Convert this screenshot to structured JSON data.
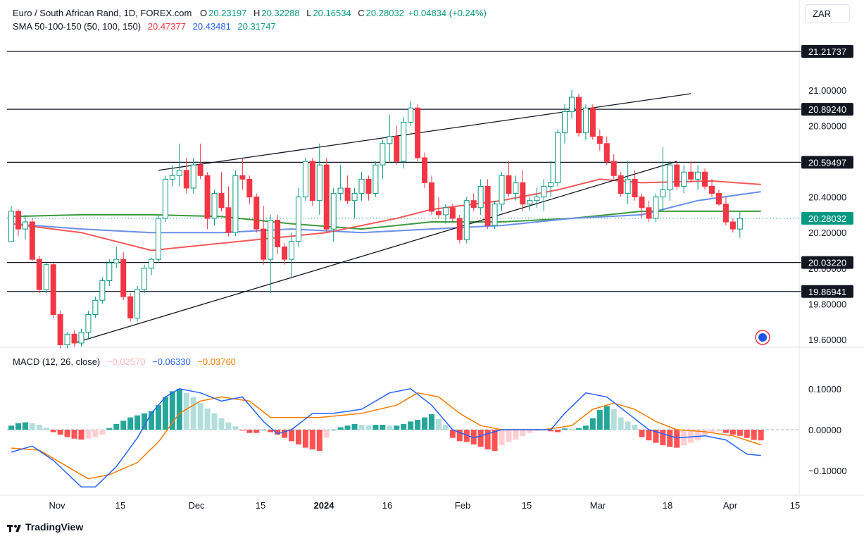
{
  "header": {
    "symbol": "Euro / South African Rand, 1D, FOREX.com",
    "o_label": "O",
    "o_value": "20.23197",
    "h_label": "H",
    "h_value": "20.32288",
    "l_label": "L",
    "l_value": "20.16534",
    "c_label": "C",
    "c_value": "20.28032",
    "change": "+0.04834 (+0.24%)",
    "sma_label": "SMA 50-100-150 (50, 100, 150)",
    "sma50_value": "20.47377",
    "sma100_value": "20.43481",
    "sma150_value": "20.31747",
    "macd_label": "MACD (12, 26, close)",
    "macd_hist_value": "−0.02570",
    "macd_value": "−0.06330",
    "macd_signal_value": "−0.03760"
  },
  "currency_button": "ZAR",
  "brand": "TradingView",
  "colors": {
    "up": "#089981",
    "down": "#f23645",
    "sma50": "#f05a5a",
    "sma100": "#6b8fe8",
    "sma150": "#3d9a3d",
    "macd": "#2962ff",
    "signal": "#f57c00",
    "last_price": "#089981"
  },
  "chart_data": [
    {
      "type": "candlestick",
      "y_ticks": [
        "21.00000",
        "20.80000",
        "20.40000",
        "20.20000",
        "20.00000",
        "19.80000",
        "19.60000"
      ],
      "y_tick_values": [
        21.0,
        20.8,
        20.4,
        20.2,
        20.0,
        19.8,
        19.6
      ],
      "ylim": [
        19.56,
        21.34
      ],
      "x_ticks": [
        "Nov",
        "15",
        "Dec",
        "15",
        "2024",
        "16",
        "Feb",
        "15",
        "Mar",
        "18",
        "Apr",
        "15"
      ],
      "horizontal_levels": [
        21.21737,
        20.8924,
        20.59497,
        20.0322,
        19.86941
      ],
      "horizontal_level_labels": [
        "21.21737",
        "20.89240",
        "20.59497",
        "20.03220",
        "19.86941"
      ],
      "last_price": 20.28032,
      "last_price_label": "20.28032",
      "candles": [
        [
          20.15,
          20.35,
          20.15,
          20.32
        ],
        [
          20.32,
          20.33,
          20.18,
          20.22
        ],
        [
          20.22,
          20.3,
          20.16,
          20.26
        ],
        [
          20.26,
          20.28,
          20.04,
          20.05
        ],
        [
          20.05,
          20.07,
          19.86,
          19.88
        ],
        [
          19.88,
          20.03,
          19.86,
          20.02
        ],
        [
          20.02,
          20.03,
          19.72,
          19.74
        ],
        [
          19.74,
          19.76,
          19.55,
          19.57
        ],
        [
          19.57,
          19.64,
          19.55,
          19.63
        ],
        [
          19.63,
          19.65,
          19.56,
          19.58
        ],
        [
          19.58,
          19.66,
          19.56,
          19.64
        ],
        [
          19.64,
          19.76,
          19.6,
          19.74
        ],
        [
          19.74,
          19.84,
          19.72,
          19.82
        ],
        [
          19.82,
          19.95,
          19.8,
          19.93
        ],
        [
          19.93,
          20.05,
          19.9,
          20.03
        ],
        [
          20.03,
          20.12,
          20.0,
          20.05
        ],
        [
          20.05,
          20.09,
          19.82,
          19.84
        ],
        [
          19.84,
          19.86,
          19.7,
          19.72
        ],
        [
          19.72,
          19.9,
          19.7,
          19.88
        ],
        [
          19.88,
          20.02,
          19.86,
          20.0
        ],
        [
          20.0,
          20.06,
          19.96,
          20.05
        ],
        [
          20.05,
          20.3,
          20.03,
          20.28
        ],
        [
          20.28,
          20.52,
          20.26,
          20.5
        ],
        [
          20.5,
          20.58,
          20.46,
          20.52
        ],
        [
          20.52,
          20.7,
          20.46,
          20.55
        ],
        [
          20.55,
          20.62,
          20.42,
          20.45
        ],
        [
          20.45,
          20.62,
          20.42,
          20.58
        ],
        [
          20.58,
          20.7,
          20.5,
          20.52
        ],
        [
          20.52,
          20.54,
          20.22,
          20.28
        ],
        [
          20.28,
          20.44,
          20.24,
          20.42
        ],
        [
          20.42,
          20.54,
          20.32,
          20.34
        ],
        [
          20.34,
          20.46,
          20.18,
          20.2
        ],
        [
          20.2,
          20.55,
          20.18,
          20.52
        ],
        [
          20.52,
          20.62,
          20.44,
          20.5
        ],
        [
          20.5,
          20.52,
          20.36,
          20.4
        ],
        [
          20.4,
          20.42,
          20.2,
          20.22
        ],
        [
          20.22,
          20.35,
          20.02,
          20.05
        ],
        [
          20.05,
          20.3,
          19.86,
          20.27
        ],
        [
          20.27,
          20.3,
          20.08,
          20.12
        ],
        [
          20.12,
          20.14,
          20.02,
          20.05
        ],
        [
          20.05,
          20.2,
          19.95,
          20.15
        ],
        [
          20.15,
          20.45,
          20.12,
          20.4
        ],
        [
          20.4,
          20.62,
          20.38,
          20.6
        ],
        [
          20.6,
          20.62,
          20.35,
          20.38
        ],
        [
          20.38,
          20.7,
          20.3,
          20.58
        ],
        [
          20.58,
          20.62,
          20.2,
          20.22
        ],
        [
          20.22,
          20.45,
          20.15,
          20.42
        ],
        [
          20.42,
          20.58,
          20.38,
          20.45
        ],
        [
          20.45,
          20.52,
          20.36,
          20.38
        ],
        [
          20.38,
          20.45,
          20.28,
          20.42
        ],
        [
          20.42,
          20.54,
          20.38,
          20.5
        ],
        [
          20.5,
          20.52,
          20.38,
          20.42
        ],
        [
          20.42,
          20.6,
          20.4,
          20.58
        ],
        [
          20.58,
          20.72,
          20.5,
          20.7
        ],
        [
          20.7,
          20.86,
          20.6,
          20.74
        ],
        [
          20.74,
          20.8,
          20.58,
          20.6
        ],
        [
          20.6,
          20.85,
          20.56,
          20.82
        ],
        [
          20.82,
          20.94,
          20.8,
          20.9
        ],
        [
          20.9,
          20.92,
          20.6,
          20.62
        ],
        [
          20.62,
          20.65,
          20.45,
          20.48
        ],
        [
          20.48,
          20.52,
          20.3,
          20.32
        ],
        [
          20.32,
          20.4,
          20.28,
          20.3
        ],
        [
          20.3,
          20.36,
          20.25,
          20.34
        ],
        [
          20.34,
          20.36,
          20.26,
          20.28
        ],
        [
          20.28,
          20.3,
          20.14,
          20.16
        ],
        [
          20.16,
          20.4,
          20.14,
          20.38
        ],
        [
          20.38,
          20.42,
          20.32,
          20.34
        ],
        [
          20.34,
          20.5,
          20.3,
          20.46
        ],
        [
          20.46,
          20.5,
          20.22,
          20.24
        ],
        [
          20.24,
          20.38,
          20.22,
          20.36
        ],
        [
          20.36,
          20.54,
          20.32,
          20.52
        ],
        [
          20.52,
          20.6,
          20.4,
          20.42
        ],
        [
          20.42,
          20.52,
          20.38,
          20.48
        ],
        [
          20.48,
          20.55,
          20.32,
          20.36
        ],
        [
          20.36,
          20.4,
          20.32,
          20.38
        ],
        [
          20.38,
          20.45,
          20.34,
          20.4
        ],
        [
          20.4,
          20.5,
          20.32,
          20.46
        ],
        [
          20.46,
          20.6,
          20.4,
          20.48
        ],
        [
          20.48,
          20.78,
          20.46,
          20.76
        ],
        [
          20.76,
          20.92,
          20.7,
          20.88
        ],
        [
          20.88,
          21.0,
          20.84,
          20.96
        ],
        [
          20.96,
          20.98,
          20.74,
          20.76
        ],
        [
          20.76,
          20.92,
          20.72,
          20.9
        ],
        [
          20.9,
          20.92,
          20.72,
          20.74
        ],
        [
          20.74,
          20.78,
          20.66,
          20.7
        ],
        [
          20.7,
          20.74,
          20.58,
          20.6
        ],
        [
          20.6,
          20.64,
          20.5,
          20.52
        ],
        [
          20.52,
          20.54,
          20.4,
          20.42
        ],
        [
          20.42,
          20.6,
          20.36,
          20.5
        ],
        [
          20.5,
          20.55,
          20.38,
          20.4
        ],
        [
          20.4,
          20.42,
          20.28,
          20.34
        ],
        [
          20.34,
          20.38,
          20.26,
          20.28
        ],
        [
          20.28,
          20.42,
          20.26,
          20.4
        ],
        [
          20.4,
          20.68,
          20.32,
          20.44
        ],
        [
          20.44,
          20.6,
          20.38,
          20.58
        ],
        [
          20.58,
          20.6,
          20.44,
          20.46
        ],
        [
          20.46,
          20.58,
          20.42,
          20.54
        ],
        [
          20.54,
          20.6,
          20.48,
          20.5
        ],
        [
          20.5,
          20.58,
          20.44,
          20.54
        ],
        [
          20.54,
          20.56,
          20.44,
          20.46
        ],
        [
          20.46,
          20.5,
          20.4,
          20.42
        ],
        [
          20.42,
          20.44,
          20.35,
          20.36
        ],
        [
          20.36,
          20.4,
          20.24,
          20.26
        ],
        [
          20.26,
          20.28,
          20.2,
          20.22
        ],
        [
          20.22,
          20.32,
          20.17,
          20.28
        ]
      ],
      "sma50": [
        [
          0,
          20.25
        ],
        [
          10,
          20.2
        ],
        [
          20,
          20.1
        ],
        [
          25,
          20.12
        ],
        [
          35,
          20.16
        ],
        [
          45,
          20.2
        ],
        [
          55,
          20.28
        ],
        [
          60,
          20.33
        ],
        [
          70,
          20.38
        ],
        [
          78,
          20.44
        ],
        [
          84,
          20.5
        ],
        [
          90,
          20.48
        ],
        [
          100,
          20.49
        ],
        [
          107,
          20.47
        ]
      ],
      "sma100": [
        [
          0,
          20.25
        ],
        [
          10,
          20.22
        ],
        [
          20,
          20.2
        ],
        [
          30,
          20.2
        ],
        [
          40,
          20.22
        ],
        [
          50,
          20.2
        ],
        [
          60,
          20.22
        ],
        [
          70,
          20.24
        ],
        [
          80,
          20.28
        ],
        [
          90,
          20.3
        ],
        [
          98,
          20.38
        ],
        [
          107,
          20.43
        ]
      ],
      "sma150": [
        [
          0,
          20.29
        ],
        [
          10,
          20.3
        ],
        [
          20,
          20.3
        ],
        [
          30,
          20.29
        ],
        [
          40,
          20.25
        ],
        [
          50,
          20.22
        ],
        [
          60,
          20.26
        ],
        [
          70,
          20.26
        ],
        [
          80,
          20.28
        ],
        [
          90,
          20.32
        ],
        [
          100,
          20.32
        ],
        [
          107,
          20.32
        ]
      ],
      "trendlines": [
        [
          [
            9,
            19.58
          ],
          [
            95,
            20.6
          ]
        ],
        [
          [
            21,
            20.55
          ],
          [
            97,
            20.98
          ]
        ]
      ]
    },
    {
      "type": "macd",
      "y_ticks": [
        "0.10000",
        "0.00000",
        "−0.10000"
      ],
      "y_tick_values": [
        0.1,
        0.0,
        -0.1
      ],
      "ylim": [
        -0.155,
        0.155
      ],
      "histogram": [
        0.01,
        0.016,
        0.018,
        0.016,
        0.012,
        0.005,
        -0.006,
        -0.012,
        -0.018,
        -0.022,
        -0.024,
        -0.022,
        -0.018,
        -0.012,
        0.004,
        0.014,
        0.022,
        0.03,
        0.035,
        0.04,
        0.046,
        0.06,
        0.08,
        0.094,
        0.1,
        0.09,
        0.08,
        0.065,
        0.052,
        0.04,
        0.028,
        0.018,
        0.008,
        -0.002,
        -0.008,
        -0.008,
        0.0,
        -0.006,
        -0.012,
        -0.02,
        -0.028,
        -0.036,
        -0.044,
        -0.048,
        -0.052,
        -0.02,
        0.0,
        0.006,
        0.01,
        0.014,
        0.012,
        0.01,
        0.012,
        0.012,
        0.01,
        0.01,
        0.014,
        0.02,
        0.024,
        0.03,
        0.038,
        0.026,
        0.012,
        -0.02,
        -0.028,
        -0.03,
        -0.036,
        -0.042,
        -0.048,
        -0.052,
        -0.038,
        -0.03,
        -0.024,
        -0.016,
        -0.008,
        -0.003,
        -0.002,
        -0.004,
        -0.006,
        0.003,
        0.002,
        0.004,
        0.01,
        0.028,
        0.048,
        0.058,
        0.05,
        0.03,
        0.02,
        0.012,
        -0.018,
        -0.026,
        -0.032,
        -0.038,
        -0.042,
        -0.044,
        -0.038,
        -0.032,
        -0.026,
        -0.014,
        -0.008,
        -0.004,
        -0.008,
        -0.012,
        -0.015,
        -0.02,
        -0.025,
        -0.026
      ],
      "macd_line": [
        [
          0,
          -0.055
        ],
        [
          3,
          -0.04
        ],
        [
          6,
          -0.075
        ],
        [
          10,
          -0.14
        ],
        [
          12,
          -0.14
        ],
        [
          15,
          -0.09
        ],
        [
          18,
          -0.02
        ],
        [
          20,
          0.04
        ],
        [
          22,
          0.08
        ],
        [
          24,
          0.1
        ],
        [
          27,
          0.09
        ],
        [
          30,
          0.07
        ],
        [
          33,
          0.08
        ],
        [
          36,
          0.02
        ],
        [
          38,
          -0.01
        ],
        [
          40,
          0.0
        ],
        [
          43,
          0.04
        ],
        [
          46,
          0.04
        ],
        [
          50,
          0.05
        ],
        [
          54,
          0.09
        ],
        [
          57,
          0.1
        ],
        [
          60,
          0.06
        ],
        [
          63,
          0.0
        ],
        [
          66,
          -0.02
        ],
        [
          70,
          0.0
        ],
        [
          74,
          0.0
        ],
        [
          77,
          0.0
        ],
        [
          79,
          0.04
        ],
        [
          82,
          0.09
        ],
        [
          85,
          0.08
        ],
        [
          88,
          0.04
        ],
        [
          91,
          0.0
        ],
        [
          95,
          -0.02
        ],
        [
          99,
          -0.015
        ],
        [
          102,
          -0.025
        ],
        [
          105,
          -0.06
        ],
        [
          107,
          -0.063
        ]
      ],
      "signal_line": [
        [
          0,
          -0.045
        ],
        [
          4,
          -0.05
        ],
        [
          8,
          -0.09
        ],
        [
          11,
          -0.12
        ],
        [
          14,
          -0.11
        ],
        [
          18,
          -0.08
        ],
        [
          21,
          -0.03
        ],
        [
          24,
          0.04
        ],
        [
          27,
          0.07
        ],
        [
          30,
          0.08
        ],
        [
          34,
          0.07
        ],
        [
          37,
          0.03
        ],
        [
          40,
          0.03
        ],
        [
          44,
          0.03
        ],
        [
          50,
          0.04
        ],
        [
          55,
          0.06
        ],
        [
          58,
          0.09
        ],
        [
          61,
          0.08
        ],
        [
          64,
          0.04
        ],
        [
          67,
          0.01
        ],
        [
          70,
          0.0
        ],
        [
          76,
          0.0
        ],
        [
          80,
          0.01
        ],
        [
          83,
          0.05
        ],
        [
          86,
          0.065
        ],
        [
          89,
          0.05
        ],
        [
          92,
          0.02
        ],
        [
          95,
          0.0
        ],
        [
          99,
          -0.005
        ],
        [
          103,
          -0.015
        ],
        [
          107,
          -0.037
        ]
      ]
    }
  ]
}
